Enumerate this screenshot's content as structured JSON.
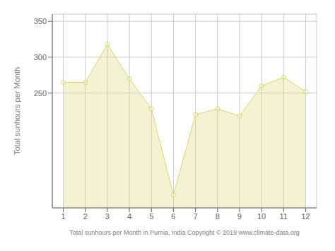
{
  "chart_data": {
    "type": "area",
    "x": [
      1,
      2,
      3,
      4,
      5,
      6,
      7,
      8,
      9,
      10,
      11,
      12
    ],
    "values": [
      265,
      265,
      318,
      270,
      228,
      108,
      220,
      228,
      218,
      260,
      272,
      252
    ],
    "color": "#D8D870",
    "marker": "circle",
    "xlim": [
      0.5,
      12.5
    ],
    "xticks": [
      1,
      2,
      3,
      4,
      5,
      6,
      7,
      8,
      9,
      10,
      11,
      12
    ],
    "ylim": [
      90,
      360
    ],
    "yticks": [
      250,
      300,
      350
    ],
    "xlabel": "Total sunhours per Month in Purnia, India Copyright © 2019 www.climate-data.org",
    "ylabel": "Total sunhours per Month",
    "grid": true
  }
}
